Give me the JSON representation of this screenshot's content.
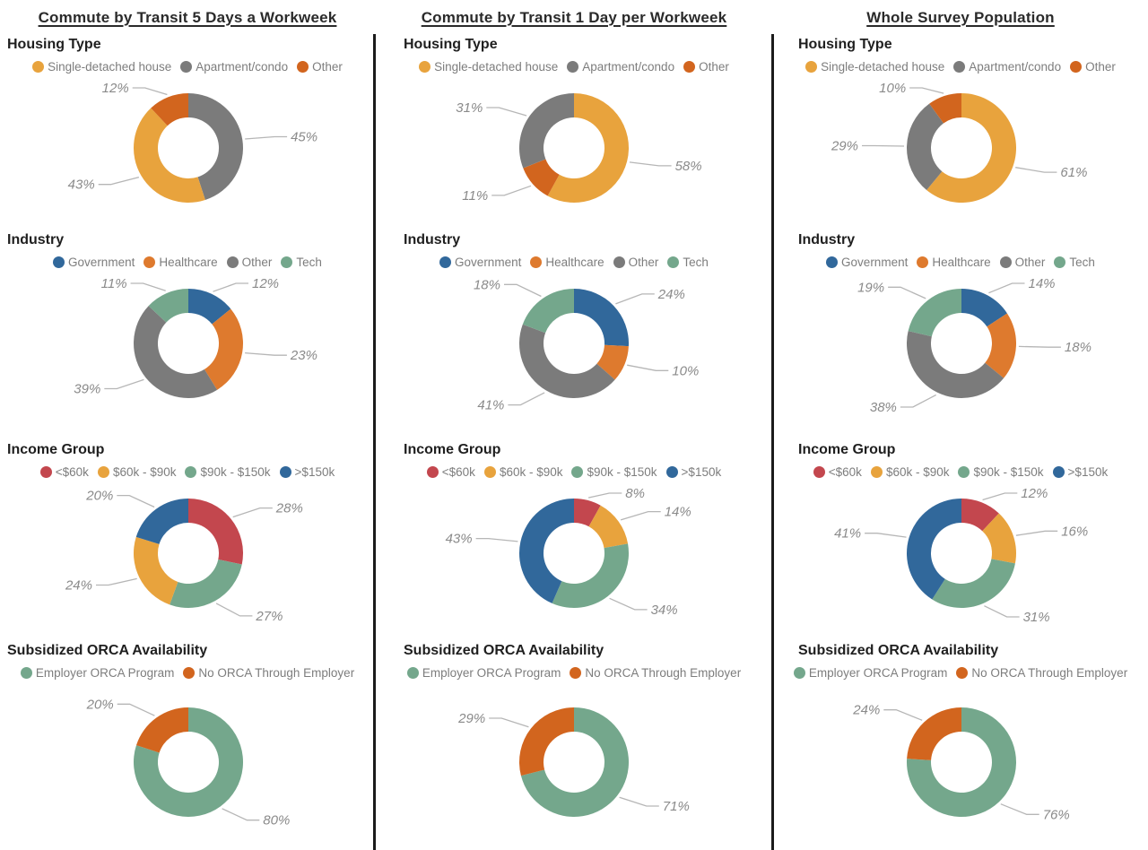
{
  "page": {
    "background": "#ffffff",
    "divider_color": "#1b1b1b",
    "unit": "%"
  },
  "palette": {
    "yellow": "#E8A33D",
    "gray": "#7B7B7B",
    "dark_orange": "#D2651E",
    "blue": "#31689B",
    "orange": "#DE7A2E",
    "green": "#74A78C",
    "red": "#C3474E"
  },
  "columns": [
    {
      "title": "Commute by Transit 5 Days a Workweek"
    },
    {
      "title": "Commute by Transit 1 Day per Workweek"
    },
    {
      "title": "Whole Survey Population"
    }
  ],
  "chart_data": [
    {
      "type": "donut",
      "column": 0,
      "section": "Housing Type",
      "direction": "clockwise",
      "start_angle": 0,
      "unit": "%",
      "legend": [
        {
          "label": "Single-detached house",
          "color": "yellow"
        },
        {
          "label": "Apartment/condo",
          "color": "gray"
        },
        {
          "label": "Other",
          "color": "dark_orange"
        }
      ],
      "segments": [
        {
          "label": "Apartment/condo",
          "value": 45,
          "display": "45%",
          "color": "gray"
        },
        {
          "label": "Single-detached house",
          "value": 43,
          "display": "43%",
          "color": "yellow"
        },
        {
          "label": "Other",
          "value": 12,
          "display": "12%",
          "color": "dark_orange"
        }
      ]
    },
    {
      "type": "donut",
      "column": 0,
      "section": "Industry",
      "direction": "clockwise",
      "start_angle": 0,
      "unit": "%",
      "legend": [
        {
          "label": "Government",
          "color": "blue"
        },
        {
          "label": "Healthcare",
          "color": "orange"
        },
        {
          "label": "Other",
          "color": "gray"
        },
        {
          "label": "Tech",
          "color": "green"
        }
      ],
      "segments": [
        {
          "label": "Government",
          "value": 12,
          "display": "12%",
          "color": "blue"
        },
        {
          "label": "Healthcare",
          "value": 23,
          "display": "23%",
          "color": "orange"
        },
        {
          "label": "Other",
          "value": 39,
          "display": "39%",
          "color": "gray"
        },
        {
          "label": "Tech",
          "value": 11,
          "display": "11%",
          "color": "green"
        }
      ]
    },
    {
      "type": "donut",
      "column": 0,
      "section": "Income Group",
      "direction": "clockwise",
      "start_angle": 0,
      "unit": "%",
      "legend": [
        {
          "label": "<$60k",
          "color": "red"
        },
        {
          "label": "$60k - $90k",
          "color": "yellow"
        },
        {
          "label": "$90k - $150k",
          "color": "green"
        },
        {
          "label": ">$150k",
          "color": "blue"
        }
      ],
      "segments": [
        {
          "label": "<$60k",
          "value": 28,
          "display": "28%",
          "color": "red"
        },
        {
          "label": "$90k - $150k",
          "value": 27,
          "display": "27%",
          "color": "green"
        },
        {
          "label": "$60k - $90k",
          "value": 24,
          "display": "24%",
          "color": "yellow"
        },
        {
          "label": ">$150k",
          "value": 20,
          "display": "20%",
          "color": "blue"
        }
      ]
    },
    {
      "type": "donut",
      "column": 0,
      "section": "Subsidized ORCA Availability",
      "direction": "clockwise",
      "start_angle": 0,
      "unit": "%",
      "legend": [
        {
          "label": "Employer ORCA Program",
          "color": "green"
        },
        {
          "label": "No ORCA Through Employer",
          "color": "dark_orange"
        }
      ],
      "segments": [
        {
          "label": "Employer ORCA Program",
          "value": 80,
          "display": "80%",
          "color": "green"
        },
        {
          "label": "No ORCA Through Employer",
          "value": 20,
          "display": "20%",
          "color": "dark_orange"
        }
      ]
    },
    {
      "type": "donut",
      "column": 1,
      "section": "Housing Type",
      "direction": "clockwise",
      "start_angle": 0,
      "unit": "%",
      "legend": [
        {
          "label": "Single-detached house",
          "color": "yellow"
        },
        {
          "label": "Apartment/condo",
          "color": "gray"
        },
        {
          "label": "Other",
          "color": "dark_orange"
        }
      ],
      "segments": [
        {
          "label": "Single-detached house",
          "value": 58,
          "display": "58%",
          "color": "yellow"
        },
        {
          "label": "Other",
          "value": 11,
          "display": "11%",
          "color": "dark_orange"
        },
        {
          "label": "Apartment/condo",
          "value": 31,
          "display": "31%",
          "color": "gray"
        }
      ]
    },
    {
      "type": "donut",
      "column": 1,
      "section": "Industry",
      "direction": "clockwise",
      "start_angle": 0,
      "unit": "%",
      "legend": [
        {
          "label": "Government",
          "color": "blue"
        },
        {
          "label": "Healthcare",
          "color": "orange"
        },
        {
          "label": "Other",
          "color": "gray"
        },
        {
          "label": "Tech",
          "color": "green"
        }
      ],
      "segments": [
        {
          "label": "Government",
          "value": 24,
          "display": "24%",
          "color": "blue"
        },
        {
          "label": "Healthcare",
          "value": 10,
          "display": "10%",
          "color": "orange"
        },
        {
          "label": "Other",
          "value": 41,
          "display": "41%",
          "color": "gray"
        },
        {
          "label": "Tech",
          "value": 18,
          "display": "18%",
          "color": "green"
        }
      ]
    },
    {
      "type": "donut",
      "column": 1,
      "section": "Income Group",
      "direction": "clockwise",
      "start_angle": 0,
      "unit": "%",
      "legend": [
        {
          "label": "<$60k",
          "color": "red"
        },
        {
          "label": "$60k - $90k",
          "color": "yellow"
        },
        {
          "label": "$90k - $150k",
          "color": "green"
        },
        {
          "label": ">$150k",
          "color": "blue"
        }
      ],
      "segments": [
        {
          "label": "<$60k",
          "value": 8,
          "display": "8%",
          "color": "red"
        },
        {
          "label": "$60k - $90k",
          "value": 14,
          "display": "14%",
          "color": "yellow"
        },
        {
          "label": "$90k - $150k",
          "value": 34,
          "display": "34%",
          "color": "green"
        },
        {
          "label": ">$150k",
          "value": 43,
          "display": "43%",
          "color": "blue"
        }
      ]
    },
    {
      "type": "donut",
      "column": 1,
      "section": "Subsidized ORCA Availability",
      "direction": "clockwise",
      "start_angle": 0,
      "unit": "%",
      "legend": [
        {
          "label": "Employer ORCA Program",
          "color": "green"
        },
        {
          "label": "No ORCA Through Employer",
          "color": "dark_orange"
        }
      ],
      "segments": [
        {
          "label": "Employer ORCA Program",
          "value": 71,
          "display": "71%",
          "color": "green"
        },
        {
          "label": "No ORCA Through Employer",
          "value": 29,
          "display": "29%",
          "color": "dark_orange"
        }
      ]
    },
    {
      "type": "donut",
      "column": 2,
      "section": "Housing Type",
      "direction": "clockwise",
      "start_angle": 0,
      "unit": "%",
      "legend": [
        {
          "label": "Single-detached house",
          "color": "yellow"
        },
        {
          "label": "Apartment/condo",
          "color": "gray"
        },
        {
          "label": "Other",
          "color": "dark_orange"
        }
      ],
      "segments": [
        {
          "label": "Single-detached house",
          "value": 61,
          "display": "61%",
          "color": "yellow"
        },
        {
          "label": "Apartment/condo",
          "value": 29,
          "display": "29%",
          "color": "gray"
        },
        {
          "label": "Other",
          "value": 10,
          "display": "10%",
          "color": "dark_orange"
        }
      ]
    },
    {
      "type": "donut",
      "column": 2,
      "section": "Industry",
      "direction": "clockwise",
      "start_angle": 0,
      "unit": "%",
      "legend": [
        {
          "label": "Government",
          "color": "blue"
        },
        {
          "label": "Healthcare",
          "color": "orange"
        },
        {
          "label": "Other",
          "color": "gray"
        },
        {
          "label": "Tech",
          "color": "green"
        }
      ],
      "segments": [
        {
          "label": "Government",
          "value": 14,
          "display": "14%",
          "color": "blue"
        },
        {
          "label": "Healthcare",
          "value": 18,
          "display": "18%",
          "color": "orange"
        },
        {
          "label": "Other",
          "value": 38,
          "display": "38%",
          "color": "gray"
        },
        {
          "label": "Tech",
          "value": 19,
          "display": "19%",
          "color": "green"
        }
      ]
    },
    {
      "type": "donut",
      "column": 2,
      "section": "Income Group",
      "direction": "clockwise",
      "start_angle": 0,
      "unit": "%",
      "legend": [
        {
          "label": "<$60k",
          "color": "red"
        },
        {
          "label": "$60k - $90k",
          "color": "yellow"
        },
        {
          "label": "$90k - $150k",
          "color": "green"
        },
        {
          "label": ">$150k",
          "color": "blue"
        }
      ],
      "segments": [
        {
          "label": "<$60k",
          "value": 12,
          "display": "12%",
          "color": "red"
        },
        {
          "label": "$60k - $90k",
          "value": 16,
          "display": "16%",
          "color": "yellow"
        },
        {
          "label": "$90k - $150k",
          "value": 31,
          "display": "31%",
          "color": "green"
        },
        {
          "label": ">$150k",
          "value": 41,
          "display": "41%",
          "color": "blue"
        }
      ]
    },
    {
      "type": "donut",
      "column": 2,
      "section": "Subsidized ORCA Availability",
      "direction": "clockwise",
      "start_angle": 0,
      "unit": "%",
      "legend": [
        {
          "label": "Employer ORCA Program",
          "color": "green"
        },
        {
          "label": "No ORCA Through Employer",
          "color": "dark_orange"
        }
      ],
      "segments": [
        {
          "label": "Employer ORCA Program",
          "value": 76,
          "display": "76%",
          "color": "green"
        },
        {
          "label": "No ORCA Through Employer",
          "value": 24,
          "display": "24%",
          "color": "dark_orange"
        }
      ]
    }
  ]
}
